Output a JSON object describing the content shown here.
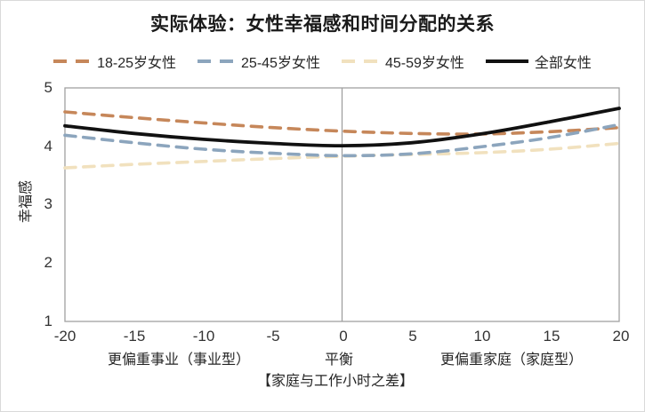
{
  "chart_data": {
    "type": "line",
    "title": "实际体验：女性幸福感和时间分配的关系",
    "x_label": "【家庭与工作小时之差】",
    "y_label": "幸福感",
    "xlim": [
      -20,
      20
    ],
    "ylim": [
      1,
      5
    ],
    "x_ticks": [
      "-20",
      "-15",
      "-10",
      "-5",
      "0",
      "5",
      "10",
      "15",
      "20"
    ],
    "y_ticks": [
      "5",
      "4",
      "3",
      "2",
      "1"
    ],
    "x_zone_labels": [
      "更偏重事业（事业型）",
      "平衡",
      "更偏重家庭（家庭型）"
    ],
    "grid": "single-vertical-line-at-zero",
    "legend_position": "top",
    "background_color": "#FFFFFF",
    "axis_color": "#A0A0A0",
    "x": [
      -20,
      -15,
      -10,
      -5,
      0,
      5,
      10,
      15,
      20
    ],
    "series": [
      {
        "name": "18-25岁女性",
        "color": "#C6875A",
        "style": "dashed",
        "values": [
          4.59,
          4.49,
          4.4,
          4.32,
          4.26,
          4.22,
          4.21,
          4.25,
          4.32
        ]
      },
      {
        "name": "25-45岁女性",
        "color": "#8CA5BD",
        "style": "dashed",
        "values": [
          4.19,
          4.06,
          3.95,
          3.88,
          3.84,
          3.87,
          3.99,
          4.15,
          4.37
        ]
      },
      {
        "name": "45-59岁女性",
        "color": "#F1E1BE",
        "style": "dashed",
        "values": [
          3.63,
          3.69,
          3.74,
          3.79,
          3.83,
          3.86,
          3.89,
          3.95,
          4.05
        ]
      },
      {
        "name": "全部女性",
        "color": "#111111",
        "style": "solid",
        "values": [
          4.35,
          4.22,
          4.12,
          4.05,
          4.01,
          4.06,
          4.21,
          4.42,
          4.65
        ]
      }
    ]
  }
}
